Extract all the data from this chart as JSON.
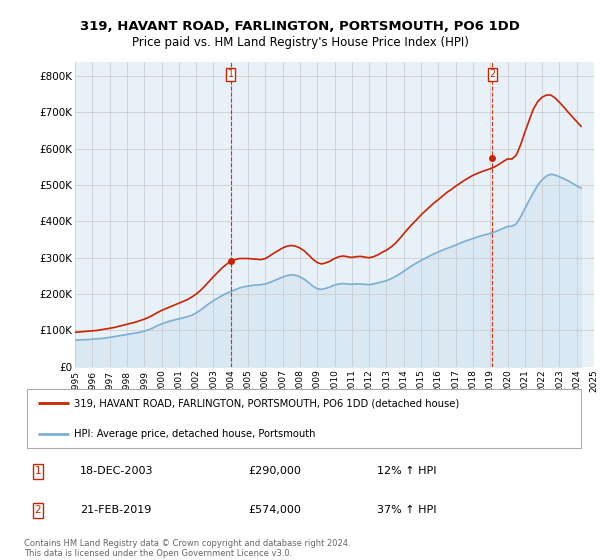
{
  "title_line1": "319, HAVANT ROAD, FARLINGTON, PORTSMOUTH, PO6 1DD",
  "title_line2": "Price paid vs. HM Land Registry's House Price Index (HPI)",
  "legend_line1": "319, HAVANT ROAD, FARLINGTON, PORTSMOUTH, PO6 1DD (detached house)",
  "legend_line2": "HPI: Average price, detached house, Portsmouth",
  "annotation1": {
    "label": "1",
    "date": "18-DEC-2003",
    "price": "£290,000",
    "hpi": "12% ↑ HPI",
    "x_year": 2004.0,
    "y_val": 290000
  },
  "annotation2": {
    "label": "2",
    "date": "21-FEB-2019",
    "price": "£574,000",
    "hpi": "37% ↑ HPI",
    "x_year": 2019.12,
    "y_val": 574000
  },
  "footer": "Contains HM Land Registry data © Crown copyright and database right 2024.\nThis data is licensed under the Open Government Licence v3.0.",
  "hpi_color": "#7bafd4",
  "hpi_fill_color": "#d0e4f0",
  "price_color": "#cc2200",
  "annotation_color": "#cc2200",
  "ylim": [
    0,
    840000
  ],
  "yticks": [
    0,
    100000,
    200000,
    300000,
    400000,
    500000,
    600000,
    700000,
    800000
  ],
  "ytick_labels": [
    "£0",
    "£100K",
    "£200K",
    "£300K",
    "£400K",
    "£500K",
    "£600K",
    "£700K",
    "£800K"
  ],
  "hpi_years": [
    1995.0,
    1995.25,
    1995.5,
    1995.75,
    1996.0,
    1996.25,
    1996.5,
    1996.75,
    1997.0,
    1997.25,
    1997.5,
    1997.75,
    1998.0,
    1998.25,
    1998.5,
    1998.75,
    1999.0,
    1999.25,
    1999.5,
    1999.75,
    2000.0,
    2000.25,
    2000.5,
    2000.75,
    2001.0,
    2001.25,
    2001.5,
    2001.75,
    2002.0,
    2002.25,
    2002.5,
    2002.75,
    2003.0,
    2003.25,
    2003.5,
    2003.75,
    2004.0,
    2004.25,
    2004.5,
    2004.75,
    2005.0,
    2005.25,
    2005.5,
    2005.75,
    2006.0,
    2006.25,
    2006.5,
    2006.75,
    2007.0,
    2007.25,
    2007.5,
    2007.75,
    2008.0,
    2008.25,
    2008.5,
    2008.75,
    2009.0,
    2009.25,
    2009.5,
    2009.75,
    2010.0,
    2010.25,
    2010.5,
    2010.75,
    2011.0,
    2011.25,
    2011.5,
    2011.75,
    2012.0,
    2012.25,
    2012.5,
    2012.75,
    2013.0,
    2013.25,
    2013.5,
    2013.75,
    2014.0,
    2014.25,
    2014.5,
    2014.75,
    2015.0,
    2015.25,
    2015.5,
    2015.75,
    2016.0,
    2016.25,
    2016.5,
    2016.75,
    2017.0,
    2017.25,
    2017.5,
    2017.75,
    2018.0,
    2018.25,
    2018.5,
    2018.75,
    2019.0,
    2019.25,
    2019.5,
    2019.75,
    2020.0,
    2020.25,
    2020.5,
    2020.75,
    2021.0,
    2021.25,
    2021.5,
    2021.75,
    2022.0,
    2022.25,
    2022.5,
    2022.75,
    2023.0,
    2023.25,
    2023.5,
    2023.75,
    2024.0,
    2024.25
  ],
  "hpi_values": [
    73000,
    74000,
    74500,
    75000,
    76000,
    77000,
    78000,
    79000,
    81000,
    83000,
    85000,
    87000,
    89000,
    91000,
    93000,
    95000,
    98000,
    102000,
    107000,
    113000,
    118000,
    122000,
    126000,
    129000,
    132000,
    135000,
    138000,
    142000,
    148000,
    156000,
    165000,
    174000,
    182000,
    189000,
    196000,
    202000,
    207000,
    212000,
    217000,
    220000,
    222000,
    224000,
    225000,
    226000,
    228000,
    232000,
    237000,
    242000,
    247000,
    251000,
    253000,
    252000,
    248000,
    241000,
    232000,
    222000,
    215000,
    213000,
    216000,
    220000,
    225000,
    228000,
    229000,
    228000,
    227000,
    228000,
    228000,
    227000,
    226000,
    228000,
    231000,
    234000,
    237000,
    242000,
    248000,
    255000,
    263000,
    271000,
    279000,
    286000,
    293000,
    299000,
    305000,
    311000,
    316000,
    321000,
    326000,
    330000,
    335000,
    340000,
    345000,
    349000,
    353000,
    357000,
    361000,
    364000,
    367000,
    371000,
    376000,
    381000,
    386000,
    387000,
    393000,
    412000,
    435000,
    458000,
    480000,
    500000,
    515000,
    525000,
    530000,
    528000,
    523000,
    518000,
    512000,
    505000,
    498000,
    492000
  ],
  "price_years": [
    1995.0,
    1995.25,
    1995.5,
    1995.75,
    1996.0,
    1996.25,
    1996.5,
    1996.75,
    1997.0,
    1997.25,
    1997.5,
    1997.75,
    1998.0,
    1998.25,
    1998.5,
    1998.75,
    1999.0,
    1999.25,
    1999.5,
    1999.75,
    2000.0,
    2000.25,
    2000.5,
    2000.75,
    2001.0,
    2001.25,
    2001.5,
    2001.75,
    2002.0,
    2002.25,
    2002.5,
    2002.75,
    2003.0,
    2003.25,
    2003.5,
    2003.75,
    2004.0,
    2004.25,
    2004.5,
    2004.75,
    2005.0,
    2005.25,
    2005.5,
    2005.75,
    2006.0,
    2006.25,
    2006.5,
    2006.75,
    2007.0,
    2007.25,
    2007.5,
    2007.75,
    2008.0,
    2008.25,
    2008.5,
    2008.75,
    2009.0,
    2009.25,
    2009.5,
    2009.75,
    2010.0,
    2010.25,
    2010.5,
    2010.75,
    2011.0,
    2011.25,
    2011.5,
    2011.75,
    2012.0,
    2012.25,
    2012.5,
    2012.75,
    2013.0,
    2013.25,
    2013.5,
    2013.75,
    2014.0,
    2014.25,
    2014.5,
    2014.75,
    2015.0,
    2015.25,
    2015.5,
    2015.75,
    2016.0,
    2016.25,
    2016.5,
    2016.75,
    2017.0,
    2017.25,
    2017.5,
    2017.75,
    2018.0,
    2018.25,
    2018.5,
    2018.75,
    2019.0,
    2019.25,
    2019.5,
    2019.75,
    2020.0,
    2020.25,
    2020.5,
    2020.75,
    2021.0,
    2021.25,
    2021.5,
    2021.75,
    2022.0,
    2022.25,
    2022.5,
    2022.75,
    2023.0,
    2023.25,
    2023.5,
    2023.75,
    2024.0,
    2024.25
  ],
  "price_values": [
    95000,
    96000,
    97000,
    98000,
    99000,
    100000,
    102000,
    104000,
    106000,
    108000,
    111000,
    114000,
    117000,
    120000,
    123000,
    127000,
    131000,
    136000,
    142000,
    149000,
    155000,
    160000,
    165000,
    170000,
    175000,
    180000,
    185000,
    192000,
    200000,
    210000,
    222000,
    235000,
    248000,
    260000,
    272000,
    282000,
    290000,
    295000,
    298000,
    298000,
    298000,
    297000,
    296000,
    295000,
    298000,
    305000,
    313000,
    320000,
    327000,
    332000,
    334000,
    332000,
    327000,
    319000,
    308000,
    296000,
    287000,
    283000,
    286000,
    291000,
    298000,
    303000,
    305000,
    303000,
    301000,
    303000,
    304000,
    302000,
    300000,
    303000,
    308000,
    315000,
    321000,
    329000,
    339000,
    352000,
    366000,
    380000,
    393000,
    405000,
    418000,
    429000,
    440000,
    451000,
    460000,
    470000,
    480000,
    488000,
    497000,
    505000,
    513000,
    520000,
    527000,
    532000,
    537000,
    541000,
    545000,
    550000,
    557000,
    565000,
    572000,
    572000,
    582000,
    610000,
    645000,
    678000,
    710000,
    730000,
    742000,
    748000,
    748000,
    740000,
    728000,
    715000,
    701000,
    688000,
    675000,
    662000
  ],
  "xticks": [
    1995,
    1996,
    1997,
    1998,
    1999,
    2000,
    2001,
    2002,
    2003,
    2004,
    2005,
    2006,
    2007,
    2008,
    2009,
    2010,
    2011,
    2012,
    2013,
    2014,
    2015,
    2016,
    2017,
    2018,
    2019,
    2020,
    2021,
    2022,
    2023,
    2024,
    2025
  ],
  "bg_color": "#e8f0f8",
  "grid_color": "#c8c8c8"
}
